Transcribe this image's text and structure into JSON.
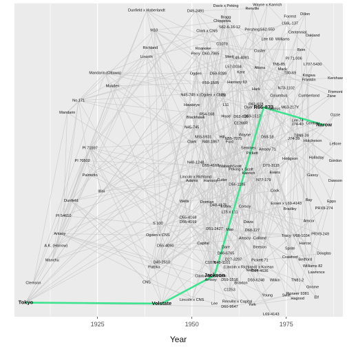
{
  "chart_data": {
    "type": "scatter",
    "title": "",
    "xlabel": "Year",
    "ylabel": "",
    "xlim": [
      1903,
      1990
    ],
    "ylim": [
      0,
      100
    ],
    "x_ticks": [
      1925,
      1950,
      1975
    ],
    "grid": true,
    "y_axis_shown": false,
    "colors": {
      "panel": "#ebebeb",
      "grid": "#ffffff",
      "edge": "#c8c8c8",
      "highlight": "#3de38f",
      "text": "#111111"
    },
    "highlight_path": [
      "Tokyo",
      "Volstate",
      "Jackson",
      "R66-873",
      "Narow"
    ],
    "points": [
      {
        "label": "Tokyo",
        "x": 1906,
        "y": 4.5,
        "bold": true
      },
      {
        "label": "Volstate",
        "x": 1942,
        "y": 4.2,
        "bold": true
      },
      {
        "label": "Jackson",
        "x": 1956,
        "y": 13.2,
        "bold": true
      },
      {
        "label": "R66-873",
        "x": 1969,
        "y": 66.8,
        "bold": true
      },
      {
        "label": "Narow",
        "x": 1985,
        "y": 61.2,
        "bold": true
      },
      {
        "label": "Dunfield x Haberlandt",
        "x": 1938,
        "y": 97.8
      },
      {
        "label": "M10",
        "x": 1940,
        "y": 91.4
      },
      {
        "label": "Richland",
        "x": 1939,
        "y": 85.8
      },
      {
        "label": "Lincoln",
        "x": 1938,
        "y": 83.0
      },
      {
        "label": "Mandarin (Ottawa)",
        "x": 1927,
        "y": 77.8
      },
      {
        "label": "Mukden",
        "x": 1929,
        "y": 73.6
      },
      {
        "label": "No.171",
        "x": 1920,
        "y": 69.0
      },
      {
        "label": "Mandarin",
        "x": 1917,
        "y": 65.2
      },
      {
        "label": "PI 71597",
        "x": 1923,
        "y": 53.8
      },
      {
        "label": "PI 70502",
        "x": 1921,
        "y": 49.8
      },
      {
        "label": "Palmetto",
        "x": 1923,
        "y": 45.2
      },
      {
        "label": "Illini",
        "x": 1926,
        "y": 40.0
      },
      {
        "label": "Dunfield",
        "x": 1918,
        "y": 37.0
      },
      {
        "label": "PI 54610",
        "x": 1916,
        "y": 32.2
      },
      {
        "label": "Arksoy",
        "x": 1915,
        "y": 26.5
      },
      {
        "label": "A.K. (Harrow)",
        "x": 1914,
        "y": 22.6
      },
      {
        "label": "Manchu",
        "x": 1913,
        "y": 18.0
      },
      {
        "label": "Clemson",
        "x": 1908,
        "y": 10.8
      },
      {
        "label": "S 100",
        "x": 1941,
        "y": 29.8
      },
      {
        "label": "Ogden x CNS",
        "x": 1941,
        "y": 26.0
      },
      {
        "label": "D55-4090",
        "x": 1943,
        "y": 22.6
      },
      {
        "label": "D49-2510",
        "x": 1942,
        "y": 17.4
      },
      {
        "label": "Patoka",
        "x": 1940,
        "y": 15.8
      },
      {
        "label": "CNS",
        "x": 1938,
        "y": 11.0
      },
      {
        "label": "Wells",
        "x": 1948,
        "y": 36.8
      },
      {
        "label": "Adams",
        "x": 1950,
        "y": 43.4
      },
      {
        "label": "Lincoln x Richland",
        "x": 1951,
        "y": 44.6
      },
      {
        "label": "Harosoy",
        "x": 1955,
        "y": 43.4
      },
      {
        "label": "Davis x Peking",
        "x": 1959,
        "y": 99.2
      },
      {
        "label": "Wayne x Kanrich",
        "x": 1970,
        "y": 99.6
      },
      {
        "label": "D49-2491",
        "x": 1951,
        "y": 97.6
      },
      {
        "label": "Renville",
        "x": 1966,
        "y": 98.4
      },
      {
        "label": "Bragg",
        "x": 1959,
        "y": 95.6
      },
      {
        "label": "Forrest",
        "x": 1976,
        "y": 95.8
      },
      {
        "label": "Dillon",
        "x": 1980,
        "y": 96.6
      },
      {
        "label": "Chippewa",
        "x": 1958,
        "y": 94.4
      },
      {
        "label": "L66L-137",
        "x": 1976,
        "y": 93.6
      },
      {
        "label": "S62-6-16-12",
        "x": 1960,
        "y": 92.4
      },
      {
        "label": "Pershing",
        "x": 1966,
        "y": 91.6
      },
      {
        "label": "S62-550",
        "x": 1970,
        "y": 91.6
      },
      {
        "label": "Centennial",
        "x": 1978,
        "y": 90.8
      },
      {
        "label": "Oakland",
        "x": 1982,
        "y": 89.8
      },
      {
        "label": "Clark x CNS",
        "x": 1954,
        "y": 91.2
      },
      {
        "label": "Lee 68",
        "x": 1970,
        "y": 88.6
      },
      {
        "label": "Williams",
        "x": 1974,
        "y": 88.6
      },
      {
        "label": "C1079",
        "x": 1958,
        "y": 87.0
      },
      {
        "label": "Roanoke",
        "x": 1953,
        "y": 85.6
      },
      {
        "label": "Custer",
        "x": 1968,
        "y": 84.8
      },
      {
        "label": "Perry",
        "x": 1951,
        "y": 84.0
      },
      {
        "label": "D60-7965",
        "x": 1955,
        "y": 84.0
      },
      {
        "label": "Merit",
        "x": 1960,
        "y": 83.0
      },
      {
        "label": "L49-4091",
        "x": 1963,
        "y": 82.6
      },
      {
        "label": "Brim",
        "x": 1979,
        "y": 85.2
      },
      {
        "label": "PI 71.006",
        "x": 1977,
        "y": 82.4
      },
      {
        "label": "TN5-85",
        "x": 1973,
        "y": 80.6
      },
      {
        "label": "L707-5430",
        "x": 1982,
        "y": 80.6
      },
      {
        "label": "L57-0034",
        "x": 1961,
        "y": 79.8
      },
      {
        "label": "Altona",
        "x": 1968,
        "y": 79.4
      },
      {
        "label": "Mack",
        "x": 1974,
        "y": 79.0
      },
      {
        "label": "T80-69",
        "x": 1976,
        "y": 77.8
      },
      {
        "label": "Kingwa",
        "x": 1981,
        "y": 77.0
      },
      {
        "label": "Franklin",
        "x": 1981,
        "y": 75.6
      },
      {
        "label": "Ogden",
        "x": 1951,
        "y": 77.6
      },
      {
        "label": "D59-9289",
        "x": 1957,
        "y": 77.6
      },
      {
        "label": "Kent",
        "x": 1963,
        "y": 78.0
      },
      {
        "label": "Kershaw",
        "x": 1988,
        "y": 76.2
      },
      {
        "label": "F59-1505",
        "x": 1955,
        "y": 74.6
      },
      {
        "label": "Harosoy 63",
        "x": 1962,
        "y": 74.8
      },
      {
        "label": "N45-745 x (Ogden x CNS)",
        "x": 1953,
        "y": 70.8
      },
      {
        "label": "L15",
        "x": 1958,
        "y": 70.8
      },
      {
        "label": "Hark",
        "x": 1967,
        "y": 72.6
      },
      {
        "label": "N73-1102",
        "x": 1975,
        "y": 73.0
      },
      {
        "label": "Fremont",
        "x": 1988,
        "y": 71.8
      },
      {
        "label": "Columbus",
        "x": 1973,
        "y": 70.6
      },
      {
        "label": "Cumberland",
        "x": 1981,
        "y": 70.6
      },
      {
        "label": "Zane",
        "x": 1987,
        "y": 70.4
      },
      {
        "label": "Hawkeye",
        "x": 1950,
        "y": 67.6
      },
      {
        "label": "L11",
        "x": 1959,
        "y": 67.6
      },
      {
        "label": "D61-618",
        "x": 1967,
        "y": 67.8
      },
      {
        "label": "Dyer",
        "x": 1965,
        "y": 66.8
      },
      {
        "label": "Bonus",
        "x": 1972,
        "y": 66.4
      },
      {
        "label": "M63-217Y",
        "x": 1976,
        "y": 66.8
      },
      {
        "label": "R54-168",
        "x": 1954,
        "y": 64.6
      },
      {
        "label": "Blackhawk",
        "x": 1951,
        "y": 63.6
      },
      {
        "label": "Hood",
        "x": 1959,
        "y": 64.0
      },
      {
        "label": "D62-616",
        "x": 1963,
        "y": 63.8
      },
      {
        "label": "D59-1517",
        "x": 1966,
        "y": 64.0
      },
      {
        "label": "Ozzie",
        "x": 1988,
        "y": 64.4
      },
      {
        "label": "C1266R",
        "x": 1963,
        "y": 61.8
      },
      {
        "label": "Lee 74",
        "x": 1978,
        "y": 62.6
      },
      {
        "label": "Century",
        "x": 1982,
        "y": 61.8
      },
      {
        "label": "J74-40",
        "x": 1978,
        "y": 61.4
      },
      {
        "label": "N45-745",
        "x": 1950,
        "y": 60.4
      },
      {
        "label": "Wayne",
        "x": 1964,
        "y": 58.0
      },
      {
        "label": "T8N9-39",
        "x": 1979,
        "y": 57.8
      },
      {
        "label": "N55-5931",
        "x": 1953,
        "y": 57.4
      },
      {
        "label": "Hill",
        "x": 1958,
        "y": 57.4
      },
      {
        "label": "N55-7075",
        "x": 1961,
        "y": 56.8
      },
      {
        "label": "D68-18",
        "x": 1970,
        "y": 57.4
      },
      {
        "label": "J74-39",
        "x": 1977,
        "y": 56.8
      },
      {
        "label": "Hutcheson",
        "x": 1982,
        "y": 56.2
      },
      {
        "label": "Clark",
        "x": 1950,
        "y": 55.8
      },
      {
        "label": "N48-1867",
        "x": 1955,
        "y": 55.8
      },
      {
        "label": "Ford",
        "x": 1960,
        "y": 55.8
      },
      {
        "label": "Lefiore",
        "x": 1988,
        "y": 55.2
      },
      {
        "label": "Semmes",
        "x": 1965,
        "y": 53.8
      },
      {
        "label": "Amsoy 71",
        "x": 1970,
        "y": 53.4
      },
      {
        "label": "Pickett",
        "x": 1966,
        "y": 52.2
      },
      {
        "label": "Holladay",
        "x": 1983,
        "y": 50.8
      },
      {
        "label": "Hodgson",
        "x": 1976,
        "y": 50.4
      },
      {
        "label": "N48-1248",
        "x": 1951,
        "y": 49.2
      },
      {
        "label": "D55-4168",
        "x": 1955,
        "y": 48.2
      },
      {
        "label": "Wabash",
        "x": 1959,
        "y": 48.0
      },
      {
        "label": "Scott",
        "x": 1962,
        "y": 48.0
      },
      {
        "label": "Peking x Scott",
        "x": 1963,
        "y": 47.0
      },
      {
        "label": "D70-3115",
        "x": 1971,
        "y": 48.2
      },
      {
        "label": "Gordon",
        "x": 1988,
        "y": 49.8
      },
      {
        "label": "Kanrich",
        "x": 1965,
        "y": 45.8
      },
      {
        "label": "Evans",
        "x": 1972,
        "y": 46.0
      },
      {
        "label": "Gasoy",
        "x": 1982,
        "y": 45.2
      },
      {
        "label": "Cutler",
        "x": 1958,
        "y": 43.6
      },
      {
        "label": "N77-179",
        "x": 1969,
        "y": 43.6
      },
      {
        "label": "D56-1185",
        "x": 1962,
        "y": 42.2
      },
      {
        "label": "Dawson",
        "x": 1988,
        "y": 43.4
      },
      {
        "label": "Cook",
        "x": 1972,
        "y": 40.2
      },
      {
        "label": "Dorman",
        "x": 1954,
        "y": 36.6
      },
      {
        "label": "D48-4175",
        "x": 1957,
        "y": 35.6
      },
      {
        "label": "Essex x L69-4143",
        "x": 1975,
        "y": 36.2
      },
      {
        "label": "Bay",
        "x": 1981,
        "y": 37.2
      },
      {
        "label": "Epps",
        "x": 1987,
        "y": 36.8
      },
      {
        "label": "Essex",
        "x": 1959,
        "y": 35.2
      },
      {
        "label": "Corsoy",
        "x": 1964,
        "y": 35.2
      },
      {
        "label": "Bradley",
        "x": 1976,
        "y": 34.4
      },
      {
        "label": "PRX9-274",
        "x": 1985,
        "y": 34.6
      },
      {
        "label": "L15 x L11",
        "x": 1960,
        "y": 33.4
      },
      {
        "label": "D55-4168",
        "x": 1949,
        "y": 31.6
      },
      {
        "label": "D55-4159",
        "x": 1949,
        "y": 30.2
      },
      {
        "label": "Davis",
        "x": 1965,
        "y": 30.2
      },
      {
        "label": "Amcor",
        "x": 1981,
        "y": 30.6
      },
      {
        "label": "D51-2427",
        "x": 1956,
        "y": 28.0
      },
      {
        "label": "Mao",
        "x": 1960,
        "y": 27.8
      },
      {
        "label": "D68-127",
        "x": 1966,
        "y": 27.6
      },
      {
        "label": "Tracy",
        "x": 1975,
        "y": 25.8
      },
      {
        "label": "V68-1034",
        "x": 1979,
        "y": 25.8
      },
      {
        "label": "PRX9-249",
        "x": 1984,
        "y": 26.4
      },
      {
        "label": "Amsoy",
        "x": 1964,
        "y": 25.0
      },
      {
        "label": "Calland",
        "x": 1968,
        "y": 25.0
      },
      {
        "label": "Capital",
        "x": 1953,
        "y": 23.4
      },
      {
        "label": "Harcor",
        "x": 1980,
        "y": 23.4
      },
      {
        "label": "Dare",
        "x": 1959,
        "y": 22.2
      },
      {
        "label": "Beeson",
        "x": 1968,
        "y": 22.2
      },
      {
        "label": "Sprite",
        "x": 1976,
        "y": 21.8
      },
      {
        "label": "D46-6765",
        "x": 1959,
        "y": 20.2
      },
      {
        "label": "Douglas",
        "x": 1985,
        "y": 20.2
      },
      {
        "label": "D27-3297",
        "x": 1961,
        "y": 18.2
      },
      {
        "label": "Pickett 71",
        "x": 1968,
        "y": 18.0
      },
      {
        "label": "Crawford",
        "x": 1976,
        "y": 19.0
      },
      {
        "label": "Bedford",
        "x": 1980,
        "y": 18.2
      },
      {
        "label": "C1070",
        "x": 1955,
        "y": 17.2
      },
      {
        "label": "N48-1101",
        "x": 1958,
        "y": 17.2
      },
      {
        "label": "(Lincoln x Richland) x Korean",
        "x": 1965,
        "y": 15.8
      },
      {
        "label": "Williams 82",
        "x": 1982,
        "y": 16.2
      },
      {
        "label": "Nathan",
        "x": 1966,
        "y": 14.8
      },
      {
        "label": "D64-4636",
        "x": 1968,
        "y": 14.6
      },
      {
        "label": "Lawrence",
        "x": 1983,
        "y": 14.2
      },
      {
        "label": "Clark x Blackhawk",
        "x": 1955,
        "y": 13.0
      },
      {
        "label": "Amsoy",
        "x": 1955,
        "y": 11.8
      },
      {
        "label": "D59-1516",
        "x": 1960,
        "y": 11.8
      },
      {
        "label": "Braxton",
        "x": 1963,
        "y": 10.8
      },
      {
        "label": "D59-6248",
        "x": 1967,
        "y": 11.6
      },
      {
        "label": "Wilkin",
        "x": 1972,
        "y": 11.6
      },
      {
        "label": "TN81-2",
        "x": 1978,
        "y": 11.6
      },
      {
        "label": "Gnome",
        "x": 1982,
        "y": 9.4
      },
      {
        "label": "C1253",
        "x": 1960,
        "y": 8.6
      },
      {
        "label": "Young",
        "x": 1970,
        "y": 6.8
      },
      {
        "label": "Swift",
        "x": 1975,
        "y": 6.8
      },
      {
        "label": "Pioneer 9381",
        "x": 1978,
        "y": 7.4
      },
      {
        "label": "Hagood",
        "x": 1978,
        "y": 5.8
      },
      {
        "label": "Elf",
        "x": 1983,
        "y": 6.2
      },
      {
        "label": "Lincoln x CNS",
        "x": 1950,
        "y": 5.4
      },
      {
        "label": "Lee",
        "x": 1956,
        "y": 4.2
      },
      {
        "label": "Renville x Capital",
        "x": 1962,
        "y": 4.8
      },
      {
        "label": "York",
        "x": 1966,
        "y": 3.8
      },
      {
        "label": "D60-9647",
        "x": 1960,
        "y": 3.2
      },
      {
        "label": "L69-4143",
        "x": 1971,
        "y": 0.8
      }
    ]
  }
}
